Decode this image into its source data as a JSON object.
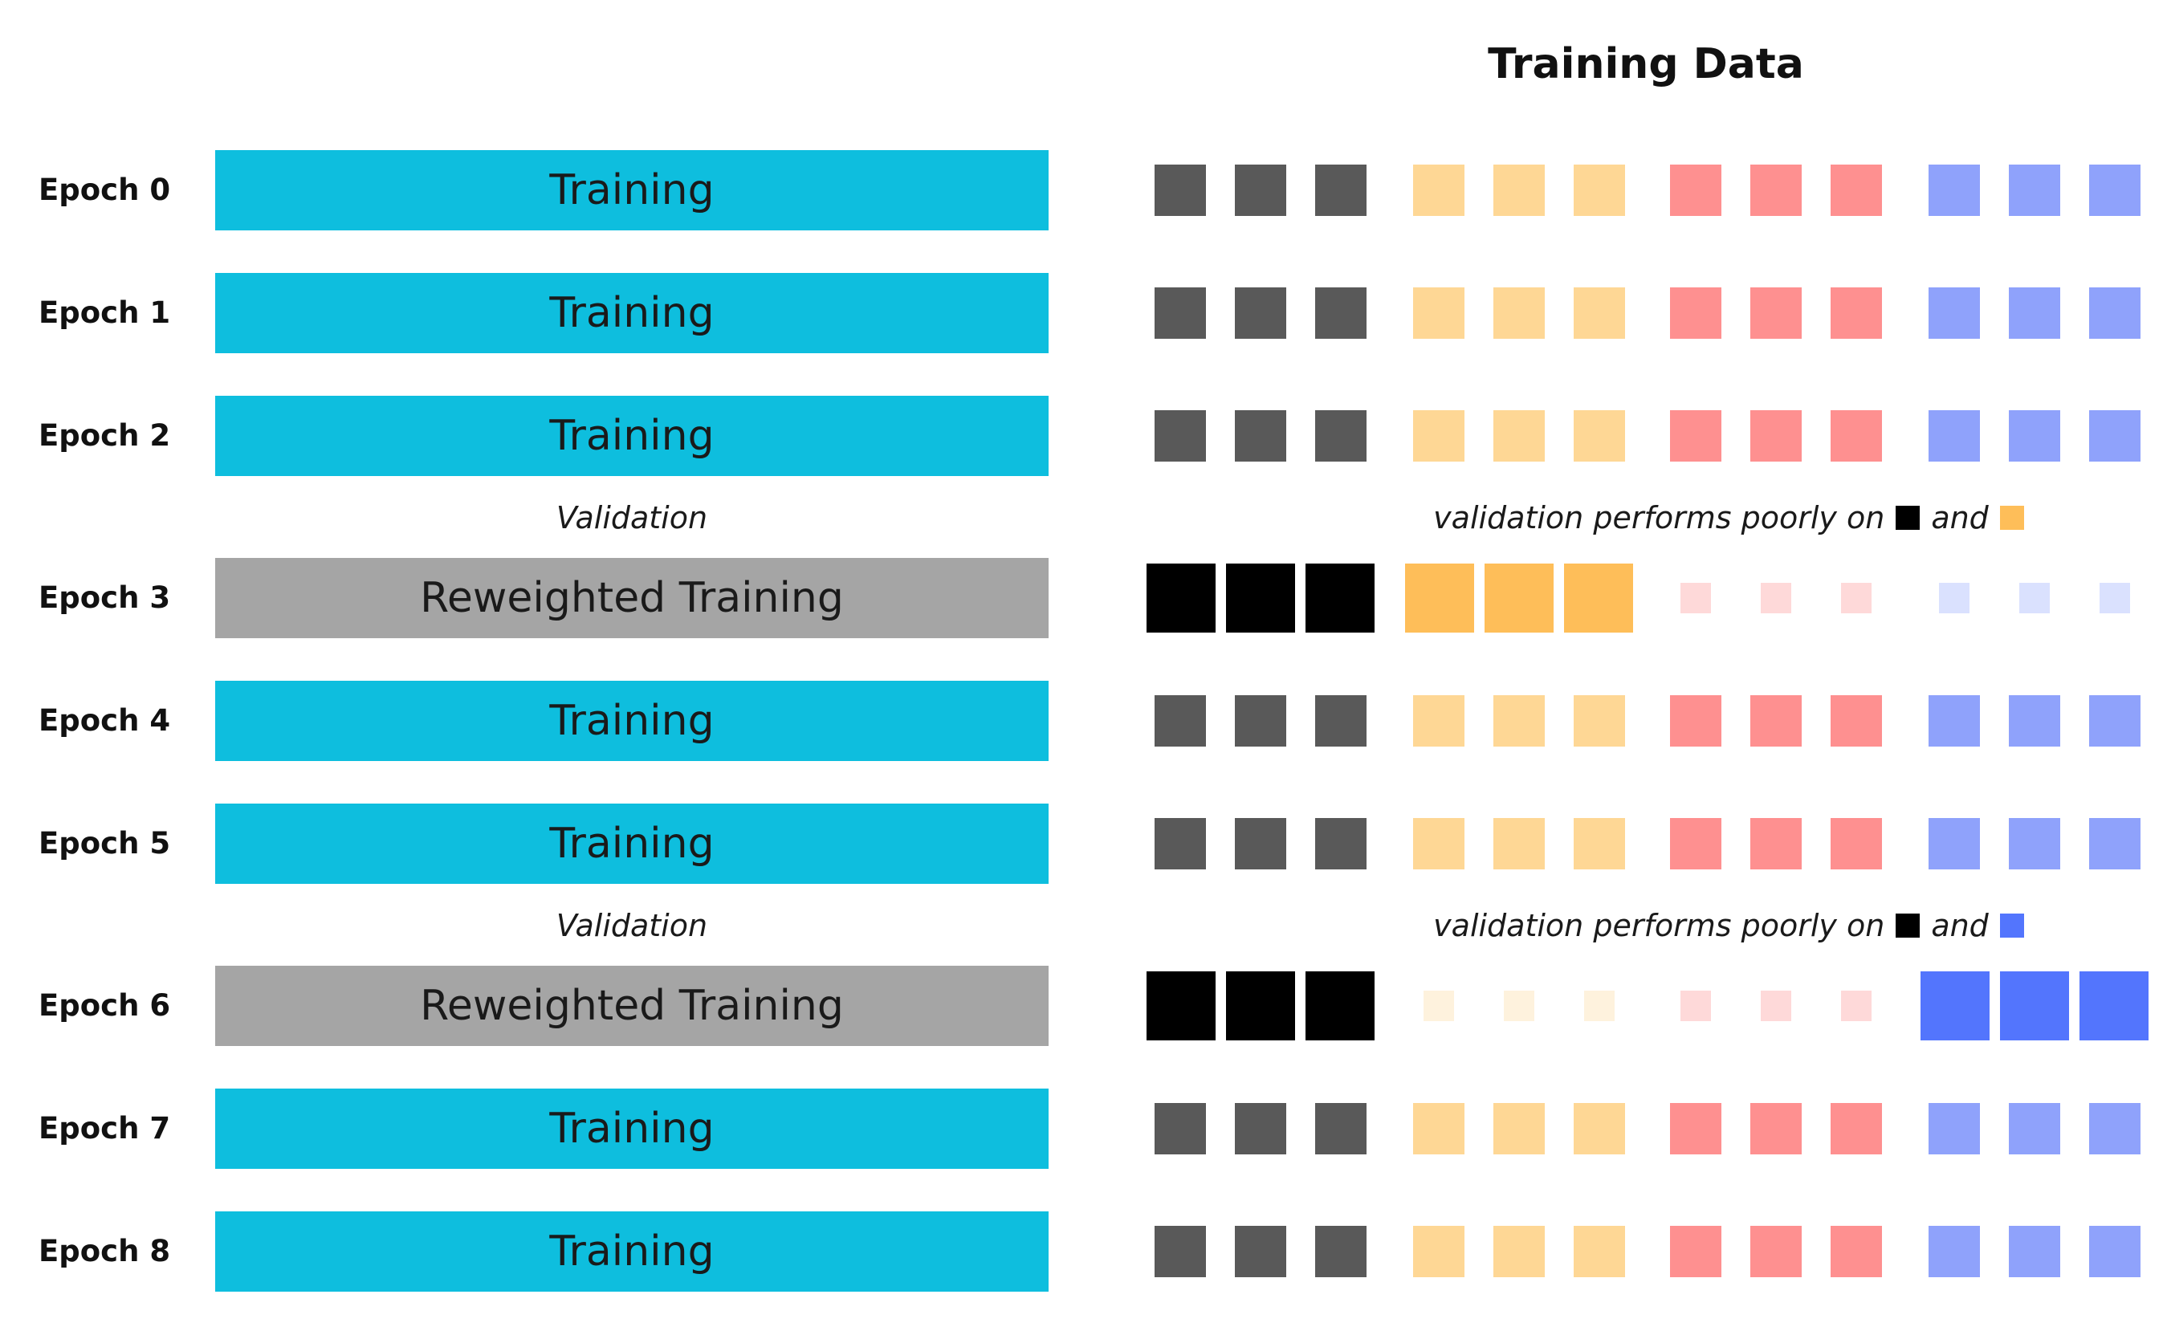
{
  "title": "Training Data",
  "colors": {
    "training_bar": "#0EBEDE",
    "reweighted_bar": "#A5A5A5",
    "groups": {
      "black": {
        "normal": "#595959",
        "emph": "#000000",
        "faded": "#D9D9D9"
      },
      "orange": {
        "normal": "#FED795",
        "emph": "#FEBE59",
        "faded": "#FEF2DD"
      },
      "red": {
        "normal": "#FE9090",
        "emph": "#FE6060",
        "faded": "#FED9D9"
      },
      "blue": {
        "normal": "#8FA2FB",
        "emph": "#5375FD",
        "faded": "#DAE1FE"
      }
    }
  },
  "group_order": [
    "black",
    "orange",
    "red",
    "blue"
  ],
  "items_per_group": 3,
  "rows": [
    {
      "kind": "epoch",
      "label": "Epoch 0",
      "bar_type": "training",
      "bar_label": "Training",
      "weights": {
        "black": "normal",
        "orange": "normal",
        "red": "normal",
        "blue": "normal"
      }
    },
    {
      "kind": "epoch",
      "label": "Epoch 1",
      "bar_type": "training",
      "bar_label": "Training",
      "weights": {
        "black": "normal",
        "orange": "normal",
        "red": "normal",
        "blue": "normal"
      }
    },
    {
      "kind": "epoch",
      "label": "Epoch 2",
      "bar_type": "training",
      "bar_label": "Training",
      "weights": {
        "black": "normal",
        "orange": "normal",
        "red": "normal",
        "blue": "normal"
      }
    },
    {
      "kind": "validation",
      "label": "Validation",
      "note": {
        "prefix": "validation performs poorly on",
        "conjunction": "and",
        "groups": [
          "black",
          "orange"
        ]
      }
    },
    {
      "kind": "epoch",
      "label": "Epoch 3",
      "bar_type": "reweighted",
      "bar_label": "Reweighted Training",
      "weights": {
        "black": "emph",
        "orange": "emph",
        "red": "faded",
        "blue": "faded"
      }
    },
    {
      "kind": "epoch",
      "label": "Epoch 4",
      "bar_type": "training",
      "bar_label": "Training",
      "weights": {
        "black": "normal",
        "orange": "normal",
        "red": "normal",
        "blue": "normal"
      }
    },
    {
      "kind": "epoch",
      "label": "Epoch 5",
      "bar_type": "training",
      "bar_label": "Training",
      "weights": {
        "black": "normal",
        "orange": "normal",
        "red": "normal",
        "blue": "normal"
      }
    },
    {
      "kind": "validation",
      "label": "Validation",
      "note": {
        "prefix": "validation performs poorly on",
        "conjunction": "and",
        "groups": [
          "black",
          "blue"
        ]
      }
    },
    {
      "kind": "epoch",
      "label": "Epoch 6",
      "bar_type": "reweighted",
      "bar_label": "Reweighted Training",
      "weights": {
        "black": "emph",
        "orange": "faded",
        "red": "faded",
        "blue": "emph"
      }
    },
    {
      "kind": "epoch",
      "label": "Epoch 7",
      "bar_type": "training",
      "bar_label": "Training",
      "weights": {
        "black": "normal",
        "orange": "normal",
        "red": "normal",
        "blue": "normal"
      }
    },
    {
      "kind": "epoch",
      "label": "Epoch 8",
      "bar_type": "training",
      "bar_label": "Training",
      "weights": {
        "black": "normal",
        "orange": "normal",
        "red": "normal",
        "blue": "normal"
      }
    }
  ]
}
